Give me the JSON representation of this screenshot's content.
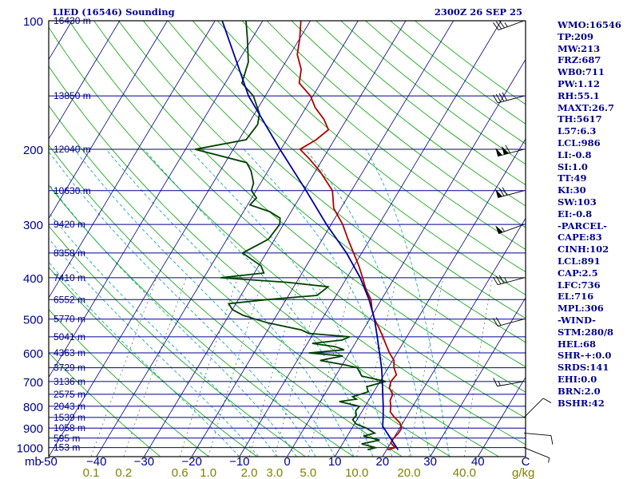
{
  "chart_data": {
    "type": "line",
    "title": "LIED (16546) Sounding",
    "timestamp": "2300Z 26 SEP 25",
    "pressure_ticks": [
      {
        "p": 100,
        "label": "100"
      },
      {
        "p": 200,
        "label": "200"
      },
      {
        "p": 300,
        "label": "300"
      },
      {
        "p": 400,
        "label": "400"
      },
      {
        "p": 500,
        "label": "500"
      },
      {
        "p": 600,
        "label": "600"
      },
      {
        "p": 700,
        "label": "700"
      },
      {
        "p": 800,
        "label": "800"
      },
      {
        "p": 900,
        "label": "900"
      },
      {
        "p": 1000,
        "label": "1000"
      }
    ],
    "pressure_axis_unit": "mb",
    "temperature_ticks": [
      {
        "t": -50,
        "label": "-50"
      },
      {
        "t": -40,
        "label": "−40"
      },
      {
        "t": -30,
        "label": "−30"
      },
      {
        "t": -20,
        "label": "−20"
      },
      {
        "t": -10,
        "label": "−10"
      },
      {
        "t": 0,
        "label": "0"
      },
      {
        "t": 10,
        "label": "10"
      },
      {
        "t": 20,
        "label": "20"
      },
      {
        "t": 30,
        "label": "30"
      },
      {
        "t": 40,
        "label": "40"
      },
      {
        "t": 50,
        "label": "C"
      }
    ],
    "mixing_ratio_ticks": [
      {
        "w": 0.1,
        "label": "0.1"
      },
      {
        "w": 0.2,
        "label": "0.2"
      },
      {
        "w": 0.6,
        "label": "0.6"
      },
      {
        "w": 1.0,
        "label": "1.0"
      },
      {
        "w": 2.0,
        "label": "2.0"
      },
      {
        "w": 3.0,
        "label": "3.0"
      },
      {
        "w": 5.0,
        "label": "5.0"
      },
      {
        "w": 10.0,
        "label": "10.0"
      },
      {
        "w": 20.0,
        "label": "20.0"
      },
      {
        "w": 40.0,
        "label": "40.0"
      }
    ],
    "mixing_ratio_unit": "g/kg",
    "height_levels": [
      {
        "p": 100,
        "label": "16430 m"
      },
      {
        "p": 150,
        "label": "13850 m"
      },
      {
        "p": 200,
        "label": "12040 m"
      },
      {
        "p": 250,
        "label": "10630 m"
      },
      {
        "p": 300,
        "label": "9420 m"
      },
      {
        "p": 350,
        "label": "8358 m"
      },
      {
        "p": 400,
        "label": "7410 m"
      },
      {
        "p": 450,
        "label": "6552 m"
      },
      {
        "p": 500,
        "label": "5770 m"
      },
      {
        "p": 550,
        "label": "5041 m"
      },
      {
        "p": 600,
        "label": "4363 m"
      },
      {
        "p": 650,
        "label": "3729 m"
      },
      {
        "p": 700,
        "label": "3136 m"
      },
      {
        "p": 750,
        "label": "2575 m"
      },
      {
        "p": 800,
        "label": "2043 m"
      },
      {
        "p": 850,
        "label": "1539 m"
      },
      {
        "p": 900,
        "label": "1058 m"
      },
      {
        "p": 950,
        "label": "595 m"
      },
      {
        "p": 1000,
        "label": "153 m"
      }
    ],
    "series": [
      {
        "type": "temperature",
        "color": "#b00000",
        "points": [
          [
            1012,
            20.2
          ],
          [
            1000,
            21.5
          ],
          [
            975,
            20.0
          ],
          [
            950,
            20.0
          ],
          [
            925,
            20.4
          ],
          [
            900,
            20.4
          ],
          [
            875,
            19.4
          ],
          [
            850,
            17.6
          ],
          [
            825,
            16.0
          ],
          [
            800,
            15.4
          ],
          [
            775,
            14.5
          ],
          [
            750,
            14.3
          ],
          [
            725,
            12.8
          ],
          [
            700,
            12.3
          ],
          [
            675,
            12.6
          ],
          [
            650,
            11.2
          ],
          [
            625,
            10.3
          ],
          [
            600,
            8.4
          ],
          [
            575,
            6.7
          ],
          [
            550,
            5.0
          ],
          [
            525,
            3.1
          ],
          [
            500,
            1.0
          ],
          [
            475,
            -0.7
          ],
          [
            450,
            -2.2
          ],
          [
            425,
            -4.6
          ],
          [
            400,
            -6.7
          ],
          [
            375,
            -9.0
          ],
          [
            350,
            -11.7
          ],
          [
            325,
            -14.6
          ],
          [
            300,
            -17.6
          ],
          [
            275,
            -21.5
          ],
          [
            250,
            -24.0
          ],
          [
            225,
            -29.1
          ],
          [
            210,
            -33.0
          ],
          [
            200,
            -36.0
          ],
          [
            190,
            -33.8
          ],
          [
            180,
            -32.5
          ],
          [
            170,
            -34.8
          ],
          [
            160,
            -38.0
          ],
          [
            150,
            -40.5
          ],
          [
            140,
            -44.5
          ],
          [
            130,
            -45.8
          ],
          [
            120,
            -48.5
          ],
          [
            110,
            -50.0
          ],
          [
            100,
            -52.0
          ]
        ]
      },
      {
        "type": "dewpoint",
        "color": "#004000",
        "points": [
          [
            1012,
            16.0
          ],
          [
            1000,
            17.4
          ],
          [
            980,
            14.0
          ],
          [
            960,
            17.3
          ],
          [
            940,
            13.4
          ],
          [
            925,
            15.4
          ],
          [
            900,
            13.0
          ],
          [
            880,
            10.3
          ],
          [
            860,
            9.1
          ],
          [
            840,
            9.3
          ],
          [
            820,
            8.6
          ],
          [
            800,
            8.8
          ],
          [
            780,
            4.0
          ],
          [
            770,
            7.3
          ],
          [
            760,
            6.2
          ],
          [
            740,
            8.8
          ],
          [
            720,
            7.9
          ],
          [
            700,
            11.2
          ],
          [
            680,
            5.5
          ],
          [
            650,
            3.5
          ],
          [
            640,
            0.5
          ],
          [
            625,
            -5.2
          ],
          [
            610,
            -1.0
          ],
          [
            600,
            -8.5
          ],
          [
            590,
            -1.5
          ],
          [
            580,
            -3.8
          ],
          [
            570,
            -9.0
          ],
          [
            560,
            -3.2
          ],
          [
            550,
            -2.0
          ],
          [
            540,
            -11.0
          ],
          [
            530,
            -13.0
          ],
          [
            510,
            -21.0
          ],
          [
            500,
            -24.0
          ],
          [
            490,
            -27.0
          ],
          [
            475,
            -30.0
          ],
          [
            460,
            -31.5
          ],
          [
            450,
            -24.0
          ],
          [
            440,
            -14.0
          ],
          [
            420,
            -12.8
          ],
          [
            410,
            -22.0
          ],
          [
            400,
            -36.5
          ],
          [
            390,
            -28.0
          ],
          [
            375,
            -29.5
          ],
          [
            350,
            -35.0
          ],
          [
            325,
            -31.3
          ],
          [
            310,
            -31.0
          ],
          [
            300,
            -30.8
          ],
          [
            290,
            -31.5
          ],
          [
            280,
            -34.5
          ],
          [
            270,
            -39.5
          ],
          [
            260,
            -39.0
          ],
          [
            250,
            -41.0
          ],
          [
            240,
            -41.5
          ],
          [
            225,
            -43.5
          ],
          [
            215,
            -45.5
          ],
          [
            200,
            -58.0
          ],
          [
            190,
            -48.5
          ],
          [
            175,
            -48.0
          ],
          [
            165,
            -49.0
          ],
          [
            150,
            -52.5
          ],
          [
            140,
            -56.5
          ],
          [
            125,
            -57.8
          ],
          [
            110,
            -61.0
          ],
          [
            100,
            -63.5
          ]
        ]
      },
      {
        "type": "parcel",
        "color": "#00009c",
        "points": [
          [
            1012,
            22.4
          ],
          [
            891,
            16.2
          ],
          [
            850,
            15.2
          ],
          [
            800,
            13.8
          ],
          [
            750,
            12.2
          ],
          [
            700,
            10.5
          ],
          [
            650,
            8.6
          ],
          [
            600,
            6.3
          ],
          [
            550,
            3.8
          ],
          [
            500,
            1.0
          ],
          [
            450,
            -2.6
          ],
          [
            400,
            -7.2
          ],
          [
            350,
            -13.2
          ],
          [
            300,
            -21.0
          ],
          [
            250,
            -29.5
          ],
          [
            200,
            -40.2
          ],
          [
            150,
            -53.5
          ],
          [
            100,
            -68.5
          ]
        ]
      }
    ],
    "wind_barbs": [
      {
        "p": 1000,
        "dir": 112,
        "kt": 5
      },
      {
        "p": 925,
        "dir": 95,
        "kt": 10
      },
      {
        "p": 850,
        "dir": 45,
        "kt": 10
      },
      {
        "p": 700,
        "dir": 260,
        "kt": 15
      },
      {
        "p": 500,
        "dir": 255,
        "kt": 20
      },
      {
        "p": 400,
        "dir": 255,
        "kt": 35
      },
      {
        "p": 300,
        "dir": 250,
        "kt": 55
      },
      {
        "p": 250,
        "dir": 255,
        "kt": 70
      },
      {
        "p": 200,
        "dir": 255,
        "kt": 110
      },
      {
        "p": 150,
        "dir": 255,
        "kt": 40
      },
      {
        "p": 100,
        "dir": 250,
        "kt": 35
      }
    ]
  },
  "stats": [
    "WMO:16546",
    "TP:209",
    "MW:213",
    "FRZ:687",
    "WB0:711",
    "PW:1.12",
    "RH:55.1",
    "MAXT:26.7",
    "TH:5617",
    "L57:6.3",
    "LCL:986",
    "LI:-0.8",
    "SI:1.0",
    "TT:49",
    "KI:30",
    "SW:103",
    "EI:-0.8",
    "-PARCEL-",
    "CAPE:83",
    "CINH:102",
    "LCL:891",
    "CAP:2.5",
    "LFC:736",
    "EL:716",
    "MPL:306",
    "-WIND-",
    "STM:280/8",
    "HEL:68",
    "SHR-+:0.0",
    "SRDS:141",
    "EHI:0.0",
    "BRN:2.0",
    "BSHR:42"
  ],
  "colors": {
    "frame": "#000000",
    "isobar": "#00008b",
    "isotherm": "#00008b",
    "dry_adiabat": "#00a000",
    "moist_adiabat": "#00a0a0",
    "mixing_ratio": "#406060",
    "mixing_ratio_label": "#808000",
    "text": "#00008b"
  }
}
